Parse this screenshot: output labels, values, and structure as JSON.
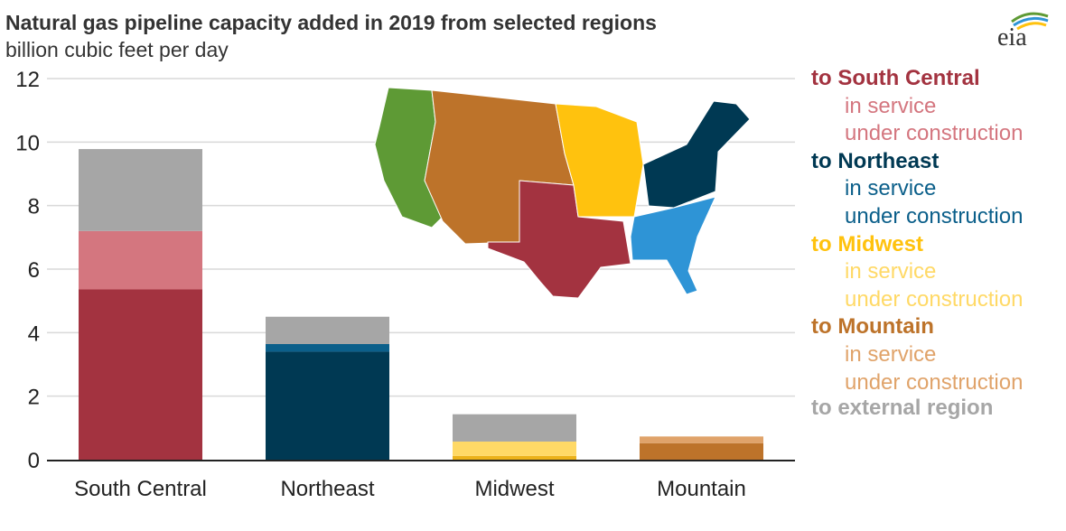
{
  "header": {
    "title": "Natural gas pipeline capacity added in 2019 from selected regions",
    "subtitle": "billion cubic feet per day",
    "logo_text": "eia"
  },
  "chart_data": {
    "type": "bar",
    "stacked": true,
    "title": "Natural gas pipeline capacity added in 2019 from selected regions",
    "ylabel": "billion cubic feet per day",
    "xlabel": "",
    "ylim": [
      0,
      12
    ],
    "yticks": [
      0,
      2,
      4,
      6,
      8,
      10,
      12
    ],
    "grid": true,
    "categories": [
      "South Central",
      "Northeast",
      "Midwest",
      "Mountain"
    ],
    "series": [
      {
        "name": "in service",
        "values": [
          5.36,
          3.4,
          0.12,
          0.52
        ],
        "colors": [
          "#a33340",
          "#003953",
          "#ecb21a",
          "#bd732a"
        ]
      },
      {
        "name": "under construction",
        "values": [
          1.84,
          0.24,
          0.45,
          0.21
        ],
        "colors": [
          "#d4767f",
          "#0b5f8a",
          "#ffd966",
          "#e0a36a"
        ]
      },
      {
        "name": "to external region",
        "values": [
          2.58,
          0.86,
          0.86,
          0
        ],
        "colors": [
          "#a6a6a6",
          "#a6a6a6",
          "#a6a6a6",
          "#a6a6a6"
        ]
      }
    ],
    "legend_position": "right"
  },
  "legend": [
    {
      "header": "to South Central",
      "sub": [
        "in service",
        "under construction"
      ],
      "color": "#a33340",
      "subcolor": "#d4767f"
    },
    {
      "header": "to Northeast",
      "sub": [
        "in service",
        "under construction"
      ],
      "color": "#003953",
      "subcolor": "#0b5f8a"
    },
    {
      "header": "to Midwest",
      "sub": [
        "in service",
        "under construction"
      ],
      "color": "#ffc20e",
      "subcolor": "#ffd966"
    },
    {
      "header": "to Mountain",
      "sub": [
        "in service",
        "under construction"
      ],
      "color": "#bd732a",
      "subcolor": "#e0a36a"
    },
    {
      "header": "to external region",
      "sub": [],
      "color": "#a6a6a6",
      "subcolor": "#a6a6a6"
    }
  ],
  "map": {
    "regions": [
      {
        "name": "Pacific",
        "color": "#5e9a35"
      },
      {
        "name": "Mountain",
        "color": "#bd732a"
      },
      {
        "name": "South Central",
        "color": "#a33340"
      },
      {
        "name": "Midwest",
        "color": "#ffc20e"
      },
      {
        "name": "Northeast",
        "color": "#003953"
      },
      {
        "name": "Southeast",
        "color": "#2e94d6"
      }
    ]
  }
}
